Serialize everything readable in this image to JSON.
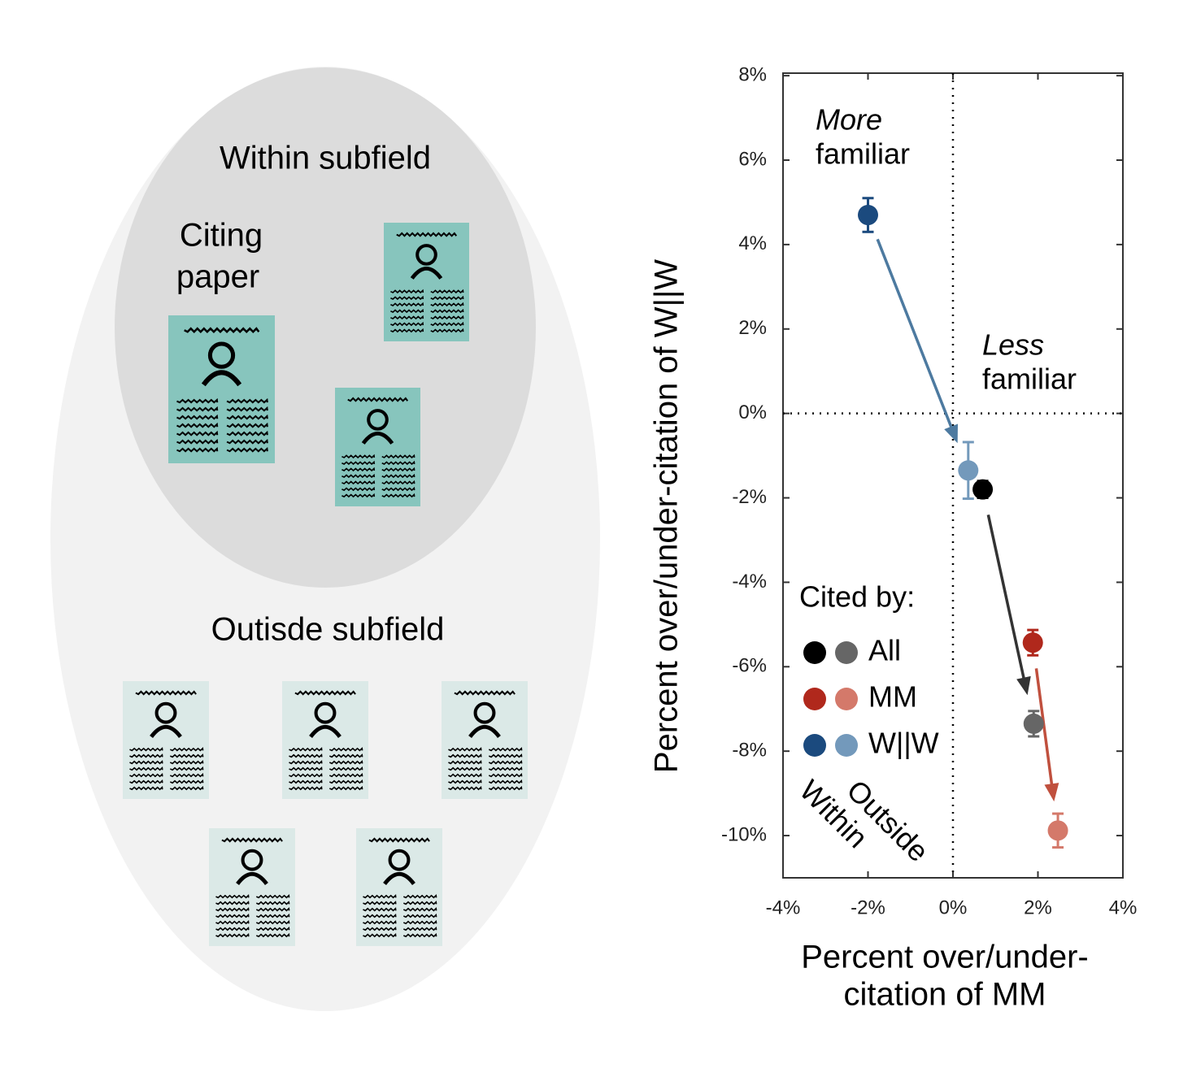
{
  "diagram": {
    "outer_label": "Outisde subfield",
    "inner_label": "Within subfield",
    "citing_label": [
      "Citing",
      "paper"
    ]
  },
  "chart_data": {
    "type": "scatter",
    "ylabel": "Percent over/under-citation of W||W",
    "xlabel": [
      "Percent over/under-",
      "citation of MM"
    ],
    "xlim": [
      -4,
      4
    ],
    "ylim": [
      -11,
      8.06
    ],
    "xticks": [
      {
        "value": -4,
        "label": "-4%"
      },
      {
        "value": -2,
        "label": "-2%"
      },
      {
        "value": 0,
        "label": "0%"
      },
      {
        "value": 2,
        "label": "2%"
      },
      {
        "value": 4,
        "label": "4%"
      }
    ],
    "yticks": [
      {
        "value": 8,
        "label": "8%"
      },
      {
        "value": 6,
        "label": "6%"
      },
      {
        "value": 4,
        "label": "4%"
      },
      {
        "value": 2,
        "label": "2%"
      },
      {
        "value": 0,
        "label": "0%"
      },
      {
        "value": -2,
        "label": "-2%"
      },
      {
        "value": -4,
        "label": "-4%"
      },
      {
        "value": -6,
        "label": "-6%"
      },
      {
        "value": -8,
        "label": "-8%"
      },
      {
        "value": -10,
        "label": "-10%"
      }
    ],
    "annotations": [
      {
        "lines": [
          "More",
          "familiar"
        ]
      },
      {
        "lines": [
          "Less",
          "familiar"
        ]
      }
    ],
    "legend_title": "Cited by:",
    "groups": [
      "Within",
      "Outside"
    ],
    "series": [
      {
        "name": "All",
        "colors": [
          "#000000",
          "#666666"
        ],
        "arrow_color": "#333333",
        "x": [
          0.7,
          1.9
        ],
        "y": [
          -1.8,
          -7.35
        ],
        "err": [
          0.2,
          0.3
        ]
      },
      {
        "name": "MM",
        "colors": [
          "#b0281c",
          "#d4796a"
        ],
        "arrow_color": "#c0503e",
        "x": [
          1.88,
          2.47
        ],
        "y": [
          -5.43,
          -9.88
        ],
        "err": [
          0.3,
          0.4
        ]
      },
      {
        "name": "W||W",
        "colors": [
          "#1b4a7e",
          "#7399bb"
        ],
        "arrow_color": "#4d7aa0",
        "x": [
          -2.0,
          0.36
        ],
        "y": [
          4.7,
          -1.35
        ],
        "err": [
          0.4,
          0.67
        ]
      }
    ]
  }
}
